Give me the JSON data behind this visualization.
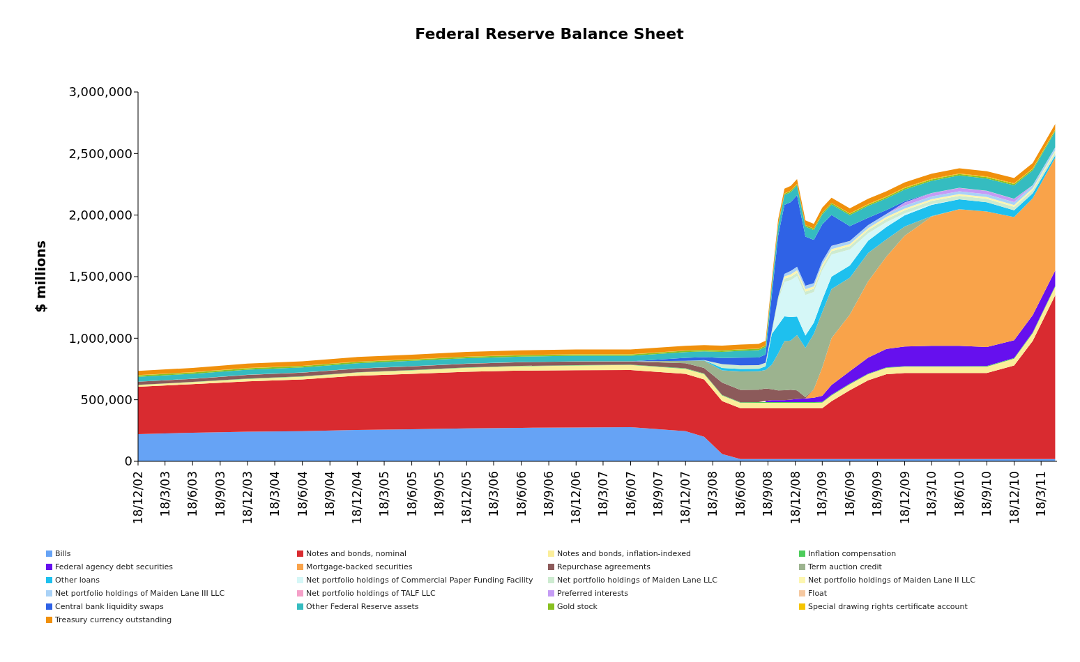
{
  "chart_data": {
    "type": "area",
    "stacked": true,
    "title": "Federal Reserve Balance Sheet",
    "ylabel": "$ millions",
    "legend": "bottom",
    "grid": false,
    "marker": "none",
    "x": [
      "2002-12-18",
      "2003-06-18",
      "2003-12-18",
      "2004-06-18",
      "2004-12-18",
      "2005-06-18",
      "2005-12-18",
      "2006-06-18",
      "2006-12-18",
      "2007-06-18",
      "2007-12-18",
      "2008-02-18",
      "2008-04-18",
      "2008-06-18",
      "2008-08-18",
      "2008-09-10",
      "2008-10-01",
      "2008-10-22",
      "2008-11-12",
      "2008-12-03",
      "2008-12-24",
      "2009-01-21",
      "2009-02-18",
      "2009-03-18",
      "2009-04-18",
      "2009-06-18",
      "2009-08-18",
      "2009-10-18",
      "2009-12-18",
      "2010-03-18",
      "2010-06-18",
      "2010-09-18",
      "2010-12-18",
      "2011-02-18",
      "2011-05-04"
    ],
    "xlim": [
      "2002-12-18",
      "2011-05-10"
    ],
    "xticks": [
      {
        "value": "2002-12-18",
        "label": "18/12/02"
      },
      {
        "value": "2003-03-18",
        "label": "18/3/03"
      },
      {
        "value": "2003-06-18",
        "label": "18/6/03"
      },
      {
        "value": "2003-09-18",
        "label": "18/9/03"
      },
      {
        "value": "2003-12-18",
        "label": "18/12/03"
      },
      {
        "value": "2004-03-18",
        "label": "18/3/04"
      },
      {
        "value": "2004-06-18",
        "label": "18/6/04"
      },
      {
        "value": "2004-09-18",
        "label": "18/9/04"
      },
      {
        "value": "2004-12-18",
        "label": "18/12/04"
      },
      {
        "value": "2005-03-18",
        "label": "18/3/05"
      },
      {
        "value": "2005-06-18",
        "label": "18/6/05"
      },
      {
        "value": "2005-09-18",
        "label": "18/9/05"
      },
      {
        "value": "2005-12-18",
        "label": "18/12/05"
      },
      {
        "value": "2006-03-18",
        "label": "18/3/06"
      },
      {
        "value": "2006-06-18",
        "label": "18/6/06"
      },
      {
        "value": "2006-09-18",
        "label": "18/9/06"
      },
      {
        "value": "2006-12-18",
        "label": "18/12/06"
      },
      {
        "value": "2007-03-18",
        "label": "18/3/07"
      },
      {
        "value": "2007-06-18",
        "label": "18/6/07"
      },
      {
        "value": "2007-09-18",
        "label": "18/9/07"
      },
      {
        "value": "2007-12-18",
        "label": "18/12/07"
      },
      {
        "value": "2008-03-18",
        "label": "18/3/08"
      },
      {
        "value": "2008-06-18",
        "label": "18/6/08"
      },
      {
        "value": "2008-09-18",
        "label": "18/9/08"
      },
      {
        "value": "2008-12-18",
        "label": "18/12/08"
      },
      {
        "value": "2009-03-18",
        "label": "18/3/09"
      },
      {
        "value": "2009-06-18",
        "label": "18/6/09"
      },
      {
        "value": "2009-09-18",
        "label": "18/9/09"
      },
      {
        "value": "2009-12-18",
        "label": "18/12/09"
      },
      {
        "value": "2010-03-18",
        "label": "18/3/10"
      },
      {
        "value": "2010-06-18",
        "label": "18/6/10"
      },
      {
        "value": "2010-09-18",
        "label": "18/9/10"
      },
      {
        "value": "2010-12-18",
        "label": "18/12/10"
      },
      {
        "value": "2011-03-18",
        "label": "18/3/11"
      }
    ],
    "ylim": [
      0,
      3000000
    ],
    "yticks": [
      {
        "value": 0,
        "label": "0"
      },
      {
        "value": 500000,
        "label": "500,000"
      },
      {
        "value": 1000000,
        "label": "1,000,000"
      },
      {
        "value": 1500000,
        "label": "1,500,000"
      },
      {
        "value": 2000000,
        "label": "2,000,000"
      },
      {
        "value": 2500000,
        "label": "2,500,000"
      },
      {
        "value": 3000000,
        "label": "3,000,000"
      }
    ],
    "series": [
      {
        "name": "Bills",
        "color": "#66a3f5",
        "values": [
          221000,
          232000,
          240000,
          245000,
          255000,
          260000,
          268000,
          272000,
          275000,
          277000,
          245000,
          200000,
          60000,
          18000,
          18000,
          18000,
          18000,
          18000,
          18000,
          18000,
          18000,
          18000,
          18000,
          18000,
          18000,
          18000,
          18000,
          18000,
          18000,
          18000,
          18000,
          18000,
          18000,
          18000,
          18000
        ]
      },
      {
        "name": "Notes and bonds, nominal",
        "color": "#d92b30",
        "values": [
          385000,
          395000,
          410000,
          420000,
          440000,
          450000,
          460000,
          465000,
          465000,
          465000,
          465000,
          465000,
          430000,
          413000,
          413000,
          413000,
          413000,
          413000,
          413000,
          413000,
          413000,
          413000,
          413000,
          413000,
          470000,
          560000,
          640000,
          690000,
          700000,
          700000,
          700000,
          700000,
          760000,
          960000,
          1330000
        ]
      },
      {
        "name": "Notes and bonds, inflation-indexed",
        "color": "#fbee9a",
        "values": [
          14000,
          17000,
          20000,
          23000,
          26000,
          29000,
          32000,
          35000,
          38000,
          40000,
          42000,
          44000,
          45000,
          45000,
          45000,
          45000,
          45000,
          45000,
          45000,
          45000,
          45000,
          45000,
          45000,
          46000,
          47000,
          48000,
          49000,
          50000,
          50000,
          50000,
          50000,
          50000,
          55000,
          62000,
          70000
        ]
      },
      {
        "name": "Inflation compensation",
        "color": "#4ccc5a",
        "values": [
          1000,
          1000,
          2000,
          2000,
          2000,
          2000,
          3000,
          3000,
          3000,
          4000,
          4000,
          4000,
          4000,
          4000,
          5000,
          5000,
          5000,
          5000,
          5000,
          5000,
          5000,
          5000,
          5000,
          5000,
          5000,
          5000,
          5000,
          5000,
          5000,
          5000,
          5000,
          6000,
          6000,
          7000,
          7000
        ]
      },
      {
        "name": "Federal agency debt securities",
        "color": "#6610ee",
        "values": [
          null,
          null,
          null,
          null,
          null,
          null,
          null,
          null,
          null,
          null,
          null,
          null,
          null,
          null,
          null,
          10000,
          15000,
          15000,
          16000,
          20000,
          25000,
          30000,
          35000,
          50000,
          80000,
          100000,
          130000,
          150000,
          160000,
          165000,
          165000,
          155000,
          145000,
          140000,
          125000
        ]
      },
      {
        "name": "Mortgage-backed securities",
        "color": "#f9a34a",
        "values": [
          null,
          null,
          null,
          null,
          null,
          null,
          null,
          null,
          null,
          null,
          null,
          null,
          null,
          null,
          null,
          null,
          null,
          null,
          null,
          null,
          null,
          0,
          70000,
          230000,
          380000,
          460000,
          620000,
          750000,
          900000,
          1050000,
          1110000,
          1100000,
          1000000,
          950000,
          915000
        ]
      },
      {
        "name": "Repurchase agreements",
        "color": "#8c5a5a",
        "values": [
          25000,
          25000,
          30000,
          30000,
          30000,
          30000,
          30000,
          30000,
          30000,
          25000,
          40000,
          45000,
          100000,
          100000,
          100000,
          100000,
          90000,
          80000,
          80000,
          80000,
          70000,
          10000,
          0,
          null,
          null,
          null,
          null,
          null,
          null,
          null,
          null,
          null,
          null,
          null,
          null
        ]
      },
      {
        "name": "Term auction credit",
        "color": "#9cb38f",
        "values": [
          null,
          null,
          null,
          null,
          null,
          null,
          null,
          null,
          null,
          0,
          20000,
          60000,
          100000,
          150000,
          150000,
          150000,
          200000,
          300000,
          400000,
          400000,
          450000,
          400000,
          450000,
          450000,
          400000,
          300000,
          230000,
          140000,
          75000,
          5000,
          0,
          null,
          null,
          null,
          null
        ]
      },
      {
        "name": "Other loans",
        "color": "#1ec0ee",
        "values": [
          null,
          null,
          null,
          null,
          null,
          null,
          null,
          null,
          null,
          null,
          0,
          3000,
          20000,
          20000,
          20000,
          30000,
          250000,
          230000,
          200000,
          190000,
          150000,
          100000,
          90000,
          100000,
          100000,
          100000,
          100000,
          100000,
          90000,
          90000,
          80000,
          75000,
          55000,
          40000,
          20000
        ]
      },
      {
        "name": "Net portfolio holdings of Commercial Paper Funding Facility",
        "color": "#d5f7f7",
        "values": [
          null,
          null,
          null,
          null,
          null,
          null,
          null,
          null,
          null,
          null,
          null,
          null,
          null,
          null,
          null,
          null,
          0,
          200000,
          280000,
          300000,
          330000,
          330000,
          250000,
          240000,
          180000,
          130000,
          60000,
          40000,
          15000,
          5000,
          0,
          null,
          null,
          null,
          null
        ]
      },
      {
        "name": "Net portfolio holdings of Maiden Lane LLC",
        "color": "#cdebd0",
        "values": [
          null,
          null,
          null,
          null,
          null,
          null,
          null,
          null,
          null,
          null,
          null,
          0,
          29000,
          29000,
          29000,
          29000,
          29000,
          27000,
          27000,
          27000,
          27000,
          27000,
          26000,
          26000,
          26000,
          26000,
          26000,
          26000,
          26000,
          27000,
          28000,
          28000,
          28000,
          27000,
          26000
        ]
      },
      {
        "name": "Net portfolio holdings of Maiden Lane II LLC",
        "color": "#fdf6b0",
        "values": [
          null,
          null,
          null,
          null,
          null,
          null,
          null,
          null,
          null,
          null,
          null,
          null,
          null,
          null,
          null,
          null,
          null,
          0,
          18000,
          20000,
          20000,
          20000,
          19000,
          19000,
          18000,
          17000,
          16000,
          16000,
          15000,
          15000,
          15000,
          14000,
          14000,
          13000,
          13000
        ]
      },
      {
        "name": "Net portfolio holdings of Maiden Lane III LLC",
        "color": "#a9d2f7",
        "values": [
          null,
          null,
          null,
          null,
          null,
          null,
          null,
          null,
          null,
          null,
          null,
          null,
          null,
          null,
          null,
          null,
          null,
          0,
          20000,
          27000,
          27000,
          27000,
          26000,
          26000,
          25000,
          24000,
          23000,
          23000,
          22000,
          22000,
          22000,
          23000,
          23000,
          24000,
          24000
        ]
      },
      {
        "name": "Net portfolio holdings of TALF LLC",
        "color": "#f5a0c8",
        "values": [
          null,
          null,
          null,
          null,
          null,
          null,
          null,
          null,
          null,
          null,
          null,
          null,
          null,
          null,
          null,
          null,
          null,
          null,
          null,
          null,
          null,
          null,
          0,
          1000,
          1000,
          1000,
          1000,
          1000,
          1000,
          1000,
          1000,
          1000,
          1000,
          1000,
          1000
        ]
      },
      {
        "name": "Preferred interests",
        "color": "#c59cf5",
        "values": [
          null,
          null,
          null,
          null,
          null,
          null,
          null,
          null,
          null,
          null,
          null,
          null,
          null,
          null,
          null,
          null,
          null,
          null,
          null,
          null,
          null,
          null,
          null,
          null,
          null,
          null,
          null,
          0,
          25000,
          25000,
          26000,
          26000,
          26000,
          0,
          null
        ]
      },
      {
        "name": "Float",
        "color": "#f5c8a0",
        "values": [
          1000,
          1000,
          1000,
          1000,
          1000,
          1000,
          1000,
          1000,
          1000,
          1000,
          1000,
          1000,
          1000,
          1000,
          1000,
          1000,
          1000,
          1000,
          1000,
          1000,
          1000,
          1000,
          1000,
          1000,
          1000,
          1000,
          1000,
          1000,
          1000,
          1000,
          1000,
          1000,
          1000,
          1000,
          1000
        ]
      },
      {
        "name": "Central bank liquidity swaps",
        "color": "#2f62e6",
        "values": [
          null,
          null,
          null,
          null,
          null,
          null,
          null,
          null,
          null,
          0,
          24000,
          24000,
          50000,
          62000,
          62000,
          67000,
          290000,
          500000,
          560000,
          560000,
          580000,
          400000,
          350000,
          300000,
          250000,
          120000,
          60000,
          30000,
          10000,
          0,
          1000,
          0,
          0,
          0,
          0
        ]
      },
      {
        "name": "Other Federal Reserve assets",
        "color": "#35bcc0",
        "values": [
          40000,
          40000,
          42000,
          42000,
          43000,
          44000,
          44000,
          45000,
          45000,
          45000,
          46000,
          47000,
          50000,
          55000,
          60000,
          60000,
          70000,
          80000,
          80000,
          80000,
          80000,
          80000,
          80000,
          80000,
          85000,
          90000,
          95000,
          95000,
          95000,
          100000,
          100000,
          100000,
          110000,
          120000,
          130000
        ]
      },
      {
        "name": "Gold stock",
        "color": "#88c020",
        "values": [
          11000,
          11000,
          11000,
          11000,
          11000,
          11000,
          11000,
          11000,
          11000,
          11000,
          11000,
          11000,
          11000,
          11000,
          11000,
          11000,
          11000,
          11000,
          11000,
          11000,
          11000,
          11000,
          11000,
          11000,
          11000,
          11000,
          11000,
          11000,
          11000,
          11000,
          11000,
          11000,
          11000,
          11000,
          11000
        ]
      },
      {
        "name": "Special drawing rights certificate account",
        "color": "#f5c400",
        "values": [
          2000,
          2000,
          2000,
          2000,
          2000,
          2000,
          2000,
          2000,
          2000,
          2000,
          2000,
          2000,
          2000,
          2000,
          2000,
          2000,
          2000,
          2000,
          2000,
          2000,
          2000,
          2000,
          2000,
          2000,
          2000,
          2000,
          5000,
          5000,
          5000,
          5000,
          5000,
          5000,
          5000,
          5000,
          5000
        ]
      },
      {
        "name": "Treasury currency outstanding",
        "color": "#f0900c",
        "values": [
          34000,
          35000,
          36000,
          36000,
          37000,
          37000,
          38000,
          38000,
          38000,
          38000,
          38000,
          38000,
          38000,
          38000,
          38000,
          38000,
          38000,
          38000,
          38000,
          38000,
          38000,
          38000,
          38000,
          42000,
          42000,
          42000,
          42000,
          42000,
          42000,
          42000,
          42000,
          43000,
          43000,
          43000,
          43000
        ]
      }
    ]
  }
}
